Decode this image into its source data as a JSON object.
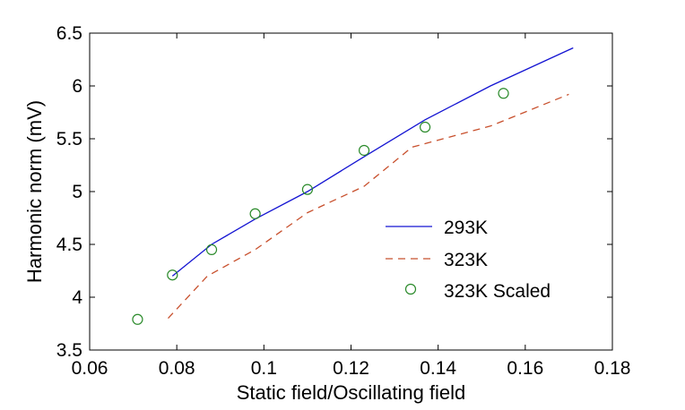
{
  "chart_data": {
    "type": "line",
    "title": "",
    "xlabel": "Static field/Oscillating field",
    "ylabel": "Harmonic norm (mV)",
    "xlim": [
      0.06,
      0.18
    ],
    "ylim": [
      3.5,
      6.5
    ],
    "xticks": [
      0.06,
      0.08,
      0.1,
      0.12,
      0.14,
      0.16,
      0.18
    ],
    "yticks": [
      3.5,
      4,
      4.5,
      5,
      5.5,
      6,
      6.5
    ],
    "xtick_labels": [
      "0.06",
      "0.08",
      "0.1",
      "0.12",
      "0.14",
      "0.16",
      "0.18"
    ],
    "ytick_labels": [
      "3.5",
      "4",
      "4.5",
      "5",
      "5.5",
      "6",
      "6.5"
    ],
    "grid": false,
    "legend_position": "lower-right",
    "series": [
      {
        "name": "293K",
        "style": "solid",
        "color": "#1414d2",
        "x": [
          0.079,
          0.088,
          0.098,
          0.11,
          0.123,
          0.137,
          0.152,
          0.171
        ],
        "y": [
          4.2,
          4.5,
          4.74,
          5.0,
          5.33,
          5.68,
          6.0,
          6.36
        ]
      },
      {
        "name": "323K",
        "style": "dashed",
        "color": "#c8502d",
        "x": [
          0.078,
          0.087,
          0.098,
          0.11,
          0.123,
          0.134,
          0.152,
          0.17
        ],
        "y": [
          3.8,
          4.2,
          4.45,
          4.8,
          5.05,
          5.42,
          5.62,
          5.92
        ]
      },
      {
        "name": "323K Scaled",
        "style": "circle",
        "color": "#2a8a2a",
        "x": [
          0.071,
          0.079,
          0.088,
          0.098,
          0.11,
          0.123,
          0.137,
          0.155
        ],
        "y": [
          3.79,
          4.21,
          4.45,
          4.79,
          5.02,
          5.39,
          5.61,
          5.93
        ]
      }
    ]
  }
}
